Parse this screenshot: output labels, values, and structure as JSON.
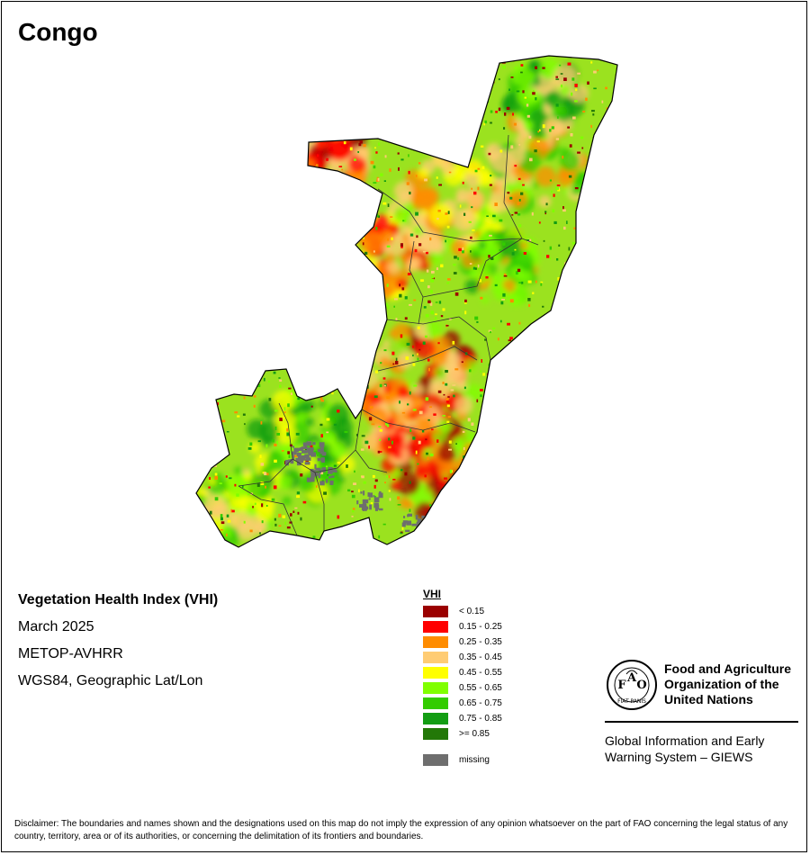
{
  "title": "Congo",
  "info": {
    "index_name": "Vegetation Health Index (VHI)",
    "period": "March 2025",
    "sensor": "METOP-AVHRR",
    "projection": "WGS84, Geographic Lat/Lon"
  },
  "legend": {
    "title": "VHI",
    "classes": [
      {
        "label": "< 0.15",
        "color": "#9b0000"
      },
      {
        "label": "0.15 - 0.25",
        "color": "#ff0000"
      },
      {
        "label": "0.25 - 0.35",
        "color": "#ff8c00"
      },
      {
        "label": "0.35 - 0.45",
        "color": "#ffcc73"
      },
      {
        "label": "0.45 - 0.55",
        "color": "#ffff00"
      },
      {
        "label": "0.55 - 0.65",
        "color": "#80ff00"
      },
      {
        "label": "0.65 - 0.75",
        "color": "#33cc00"
      },
      {
        "label": "0.75 - 0.85",
        "color": "#139d13"
      },
      {
        "label": ">= 0.85",
        "color": "#237808"
      }
    ],
    "missing": {
      "label": "missing",
      "color": "#6e6e6e"
    }
  },
  "organization": {
    "name_lines": [
      "Food and Agriculture",
      "Organization of the",
      "United Nations"
    ],
    "system_lines": [
      "Global Information and Early",
      "Warning System – GIEWS"
    ],
    "logo_letters": [
      "F",
      "A",
      "O"
    ],
    "logo_motto": "FIAT PANIS"
  },
  "disclaimer": "Disclaimer: The boundaries and names shown and the designations used on this map do not imply the expression of any opinion whatsoever on the part of FAO concerning the legal status of any country, territory, area or of its authorities, or concerning the delimitation of its frontiers and boundaries."
}
